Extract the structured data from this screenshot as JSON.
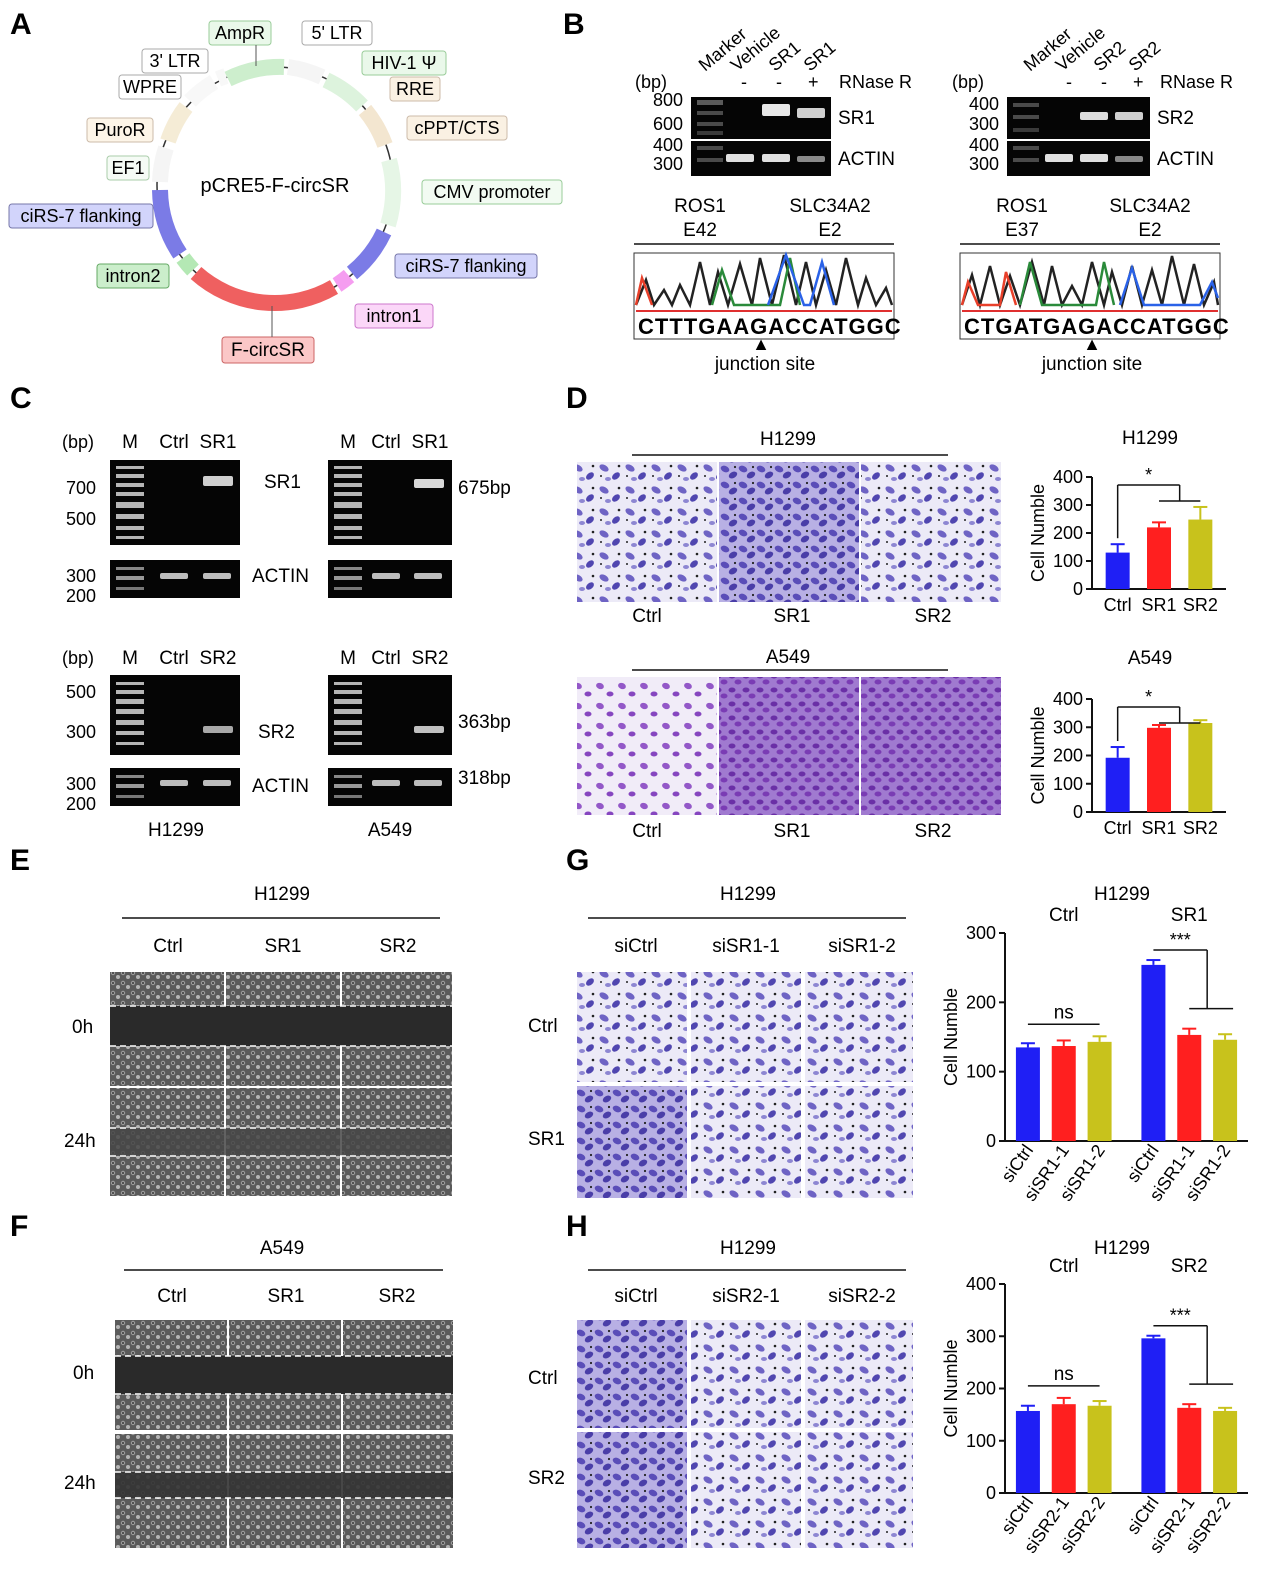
{
  "panels": {
    "A": "A",
    "B": "B",
    "C": "C",
    "D": "D",
    "E": "E",
    "F": "F",
    "G": "G",
    "H": "H"
  },
  "plasmid": {
    "name": "pCRE5-F-circSR",
    "features": {
      "ampr": "AmpR",
      "ltr5": "5' LTR",
      "hiv": "HIV-1 Ψ",
      "rre": "RRE",
      "cppt": "cPPT/CTS",
      "cmv": "CMV promoter",
      "flank_right": "ciRS-7 flanking",
      "intron1": "intron1",
      "fcircsr": "F-circSR",
      "intron2": "intron2",
      "flank_left": "ciRS-7 flanking",
      "ef1": "EF1",
      "puror": "PuroR",
      "wpre": "WPRE",
      "ltr3": "3' LTR"
    },
    "colors": {
      "green": "#e6f7e6",
      "red": "#f26d6d",
      "blue": "#8080e8",
      "pink": "#f7a8f2",
      "tan": "#f6e8d4"
    }
  },
  "panelB": {
    "bp": "(bp)",
    "rnase": "RNase R",
    "minus": "-",
    "plus": "+",
    "left": {
      "lanes": [
        "Marker",
        "Vehicle",
        "SR1",
        "SR1"
      ],
      "ticks_top": [
        "800",
        "600"
      ],
      "ticks_bottom": [
        "400",
        "300"
      ],
      "band_top": "SR1",
      "band_bottom": "ACTIN",
      "exon1": "ROS1",
      "exon1b": "E42",
      "exon2": "SLC34A2",
      "exon2b": "E2",
      "sequence": "CTTTGAAGACCATGGC",
      "junction": "junction site"
    },
    "right": {
      "lanes": [
        "Marker",
        "Vehicle",
        "SR2",
        "SR2"
      ],
      "ticks_top": [
        "400",
        "300"
      ],
      "ticks_bottom": [
        "400",
        "300"
      ],
      "band_top": "SR2",
      "band_bottom": "ACTIN",
      "exon1": "ROS1",
      "exon1b": "E37",
      "exon2": "SLC34A2",
      "exon2b": "E2",
      "sequence": "CTGATGAGACCATGGC",
      "junction": "junction site"
    }
  },
  "panelC": {
    "bp": "(bp)",
    "m": "M",
    "ctrl": "Ctrl",
    "sr1": "SR1",
    "sr2": "SR2",
    "ticks1": [
      "700",
      "500"
    ],
    "ticks2": [
      "300",
      "200"
    ],
    "ticks3": [
      "500",
      "300"
    ],
    "ticks4": [
      "300",
      "200"
    ],
    "sr1_label": "SR1",
    "actin": "ACTIN",
    "sr2_label": "SR2",
    "size_sr1": "675bp",
    "size_sr2": "363bp",
    "size_actin": "318bp",
    "cell1": "H1299",
    "cell2": "A549"
  },
  "panelD": {
    "cell1": "H1299",
    "cell2": "A549",
    "groups": [
      "Ctrl",
      "SR1",
      "SR2"
    ],
    "ylabel": "Cell Numble",
    "star": "*"
  },
  "panelE": {
    "cell": "H1299",
    "groups": [
      "Ctrl",
      "SR1",
      "SR2"
    ],
    "t0": "0h",
    "t24": "24h"
  },
  "panelF": {
    "cell": "A549",
    "groups": [
      "Ctrl",
      "SR1",
      "SR2"
    ],
    "t0": "0h",
    "t24": "24h"
  },
  "panelG": {
    "cell": "H1299",
    "cols": [
      "siCtrl",
      "siSR1-1",
      "siSR1-2"
    ],
    "rows": [
      "Ctrl",
      "SR1"
    ]
  },
  "panelH": {
    "cell": "H1299",
    "cols": [
      "siCtrl",
      "siSR2-1",
      "siSR2-2"
    ],
    "rows": [
      "Ctrl",
      "SR2"
    ]
  },
  "chart_data": [
    {
      "type": "bar",
      "title": "H1299",
      "ylabel": "Cell Numble",
      "categories": [
        "Ctrl",
        "SR1",
        "SR2"
      ],
      "values": [
        130,
        220,
        248
      ],
      "errors": [
        30,
        18,
        45
      ],
      "ylim": [
        0,
        400
      ],
      "yticks": [
        0,
        100,
        200,
        300,
        400
      ],
      "colors": [
        "#1f1ff5",
        "#ff1f1f",
        "#c8c21c"
      ],
      "annotation": "*"
    },
    {
      "type": "bar",
      "title": "A549",
      "ylabel": "Cell Numble",
      "categories": [
        "Ctrl",
        "SR1",
        "SR2"
      ],
      "values": [
        192,
        298,
        315
      ],
      "errors": [
        38,
        10,
        10
      ],
      "ylim": [
        0,
        400
      ],
      "yticks": [
        0,
        100,
        200,
        300,
        400
      ],
      "colors": [
        "#1f1ff5",
        "#ff1f1f",
        "#c8c21c"
      ],
      "annotation": "*"
    },
    {
      "type": "bar",
      "title": "H1299",
      "ylabel": "Cell Numble",
      "group_labels": [
        "Ctrl",
        "SR1"
      ],
      "categories": [
        "siCtrl",
        "siSR1-1",
        "siSR1-2",
        "siCtrl",
        "siSR1-1",
        "siSR1-2"
      ],
      "values": [
        135,
        137,
        143,
        254,
        153,
        146
      ],
      "errors": [
        6,
        8,
        8,
        7,
        9,
        8
      ],
      "ylim": [
        0,
        300
      ],
      "yticks": [
        0,
        100,
        200,
        300
      ],
      "colors": [
        "#1f1ff5",
        "#ff1f1f",
        "#c8c21c",
        "#1f1ff5",
        "#ff1f1f",
        "#c8c21c"
      ],
      "annotation_left": "ns",
      "annotation_right": "***"
    },
    {
      "type": "bar",
      "title": "H1299",
      "ylabel": "Cell Numble",
      "group_labels": [
        "Ctrl",
        "SR2"
      ],
      "categories": [
        "siCtrl",
        "siSR2-1",
        "siSR2-2",
        "siCtrl",
        "siSR2-1",
        "siSR2-2"
      ],
      "values": [
        157,
        170,
        167,
        296,
        163,
        157
      ],
      "errors": [
        10,
        12,
        9,
        5,
        7,
        6
      ],
      "ylim": [
        0,
        400
      ],
      "yticks": [
        0,
        100,
        200,
        300,
        400
      ],
      "colors": [
        "#1f1ff5",
        "#ff1f1f",
        "#c8c21c",
        "#1f1ff5",
        "#ff1f1f",
        "#c8c21c"
      ],
      "annotation_left": "ns",
      "annotation_right": "***"
    }
  ]
}
